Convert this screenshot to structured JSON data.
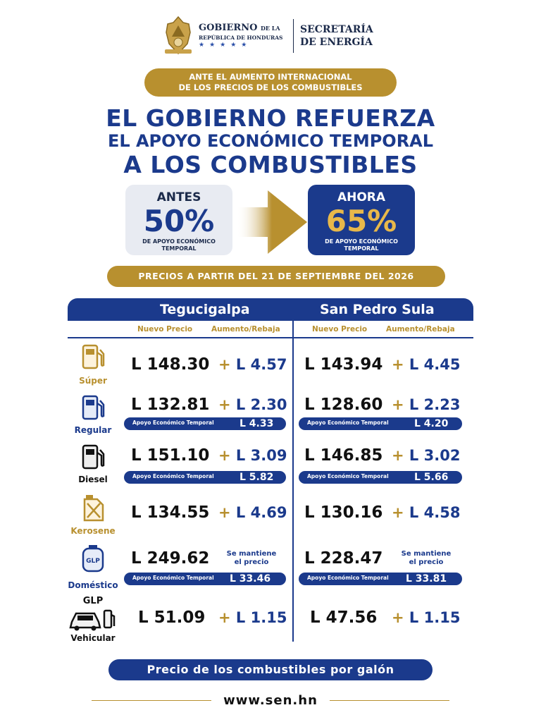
{
  "header": {
    "gov_big": "GOBIERNO",
    "gov_small": "DE LA",
    "gov_sub": "REPÚBLICA DE HONDURAS",
    "stars": "★★★★★",
    "secretaria_line1": "SECRETARÍA",
    "secretaria_line2": "DE ENERGÍA"
  },
  "intro_line1": "ANTE EL AUMENTO INTERNACIONAL",
  "intro_line2": "DE LOS PRECIOS DE LOS COMBUSTIBLES",
  "title_line1": "EL GOBIERNO REFUERZA",
  "title_line2": "EL APOYO ECONÓMICO TEMPORAL",
  "title_line3": "A LOS COMBUSTIBLES",
  "antes": {
    "label": "ANTES",
    "pct": "50%",
    "sub1": "DE APOYO ECONÓMICO",
    "sub2": "TEMPORAL"
  },
  "ahora": {
    "label": "AHORA",
    "pct": "65%",
    "sub1": "DE APOYO ECONÓMICO",
    "sub2": "TEMPORAL"
  },
  "date_banner": "PRECIOS A PARTIR DEL 21 DE SEPTIEMBRE DEL 2026",
  "table": {
    "city1": "Tegucigalpa",
    "city2": "San Pedro Sula",
    "col_price": "Nuevo Precio",
    "col_change": "Aumento/Rebaja",
    "aet_label": "Apoyo Económico Temporal",
    "rows": [
      {
        "name": "Súper",
        "teg_price": "L 148.30",
        "teg_change": "L 4.57",
        "sps_price": "L 143.94",
        "sps_change": "L 4.45"
      },
      {
        "name": "Regular",
        "teg_price": "L 132.81",
        "teg_change": "L 2.30",
        "sps_price": "L 128.60",
        "sps_change": "L 2.23",
        "teg_aet": "L 4.33",
        "sps_aet": "L 4.20"
      },
      {
        "name": "Diesel",
        "teg_price": "L 151.10",
        "teg_change": "L 3.09",
        "sps_price": "L 146.85",
        "sps_change": "L 3.02",
        "teg_aet": "L 5.82",
        "sps_aet": "L 5.66"
      },
      {
        "name": "Kerosene",
        "teg_price": "L 134.55",
        "teg_change": "L 4.69",
        "sps_price": "L 130.16",
        "sps_change": "L 4.58"
      },
      {
        "name": "Doméstico",
        "teg_price": "L 249.62",
        "teg_change_l1": "Se mantiene",
        "teg_change_l2": "el precio",
        "sps_price": "L 228.47",
        "sps_change_l1": "Se mantiene",
        "sps_change_l2": "el precio",
        "teg_aet": "L 33.46",
        "sps_aet": "L 33.81"
      },
      {
        "name_top": "GLP",
        "name": "Vehicular",
        "teg_price": "L 51.09",
        "teg_change": "L 1.15",
        "sps_price": "L 47.56",
        "sps_change": "L 1.15"
      }
    ],
    "plus": "+"
  },
  "footer_banner": "Precio de los combustibles por galón",
  "website": "www.sen.hn"
}
